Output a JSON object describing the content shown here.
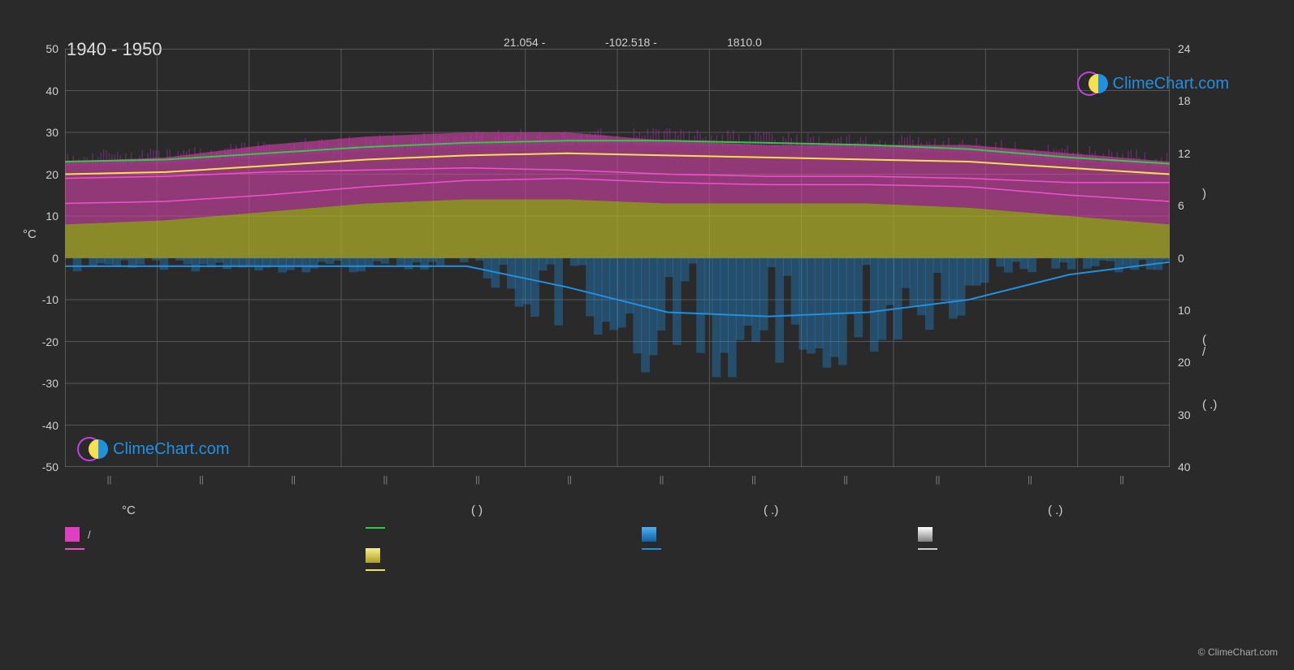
{
  "title": "1940 - 1950",
  "header": {
    "lat": "21.054 -",
    "lon": "-102.518 -",
    "elev": "1810.0"
  },
  "chart": {
    "type": "climate-chart",
    "background_color": "#2a2a2a",
    "grid_color": "#555555",
    "left_axis": {
      "title": "°C",
      "min": -50,
      "max": 50,
      "step": 10,
      "ticks": [
        50,
        40,
        30,
        20,
        10,
        0,
        -10,
        -20,
        -30,
        -40,
        -50
      ]
    },
    "right_axis": {
      "top": {
        "ticks": [
          24,
          18,
          12,
          6,
          0
        ],
        "symbol": ")"
      },
      "bottom": {
        "ticks": [
          10,
          20,
          30,
          40
        ],
        "symbols": [
          "(",
          "/",
          "(   .)"
        ]
      }
    },
    "month_marks": [
      "||",
      "||",
      "||",
      "||",
      "||",
      "||",
      "||",
      "||",
      "||",
      "||",
      "||",
      "||"
    ],
    "series": {
      "green_line": {
        "color": "#2ecc40",
        "width": 2,
        "values": [
          23,
          23.5,
          25,
          26.5,
          27.5,
          28,
          28,
          27.5,
          27,
          26,
          24,
          22.5
        ]
      },
      "yellow_line": {
        "color": "#f5e050",
        "width": 2,
        "values": [
          20,
          20.5,
          22,
          23.5,
          24.5,
          25,
          24.5,
          24,
          23.5,
          23,
          21.5,
          20
        ]
      },
      "magenta_upper": {
        "color": "#f050d0",
        "width": 1.5,
        "values": [
          19,
          19.5,
          20.5,
          21,
          21.5,
          21,
          20,
          19.5,
          19.5,
          19,
          18,
          18
        ]
      },
      "magenta_lower": {
        "color": "#f050d0",
        "width": 1.5,
        "values": [
          13,
          13.5,
          15,
          17,
          18.5,
          19,
          18,
          17.5,
          17.5,
          17,
          15,
          13.5
        ]
      },
      "blue_line": {
        "color": "#2090e0",
        "width": 2,
        "values": [
          -2,
          -2,
          -2,
          -2,
          -2,
          -7,
          -13,
          -14,
          -13,
          -10,
          -4,
          -1
        ]
      },
      "pink_fill": {
        "color": "rgba(230, 70, 180, 0.55)",
        "top_values": [
          23,
          24,
          27,
          29,
          30,
          30,
          28,
          27,
          27,
          27,
          25,
          23
        ],
        "bottom_values": [
          8,
          9,
          11,
          13,
          14,
          14,
          13,
          13,
          13,
          12,
          10,
          8
        ]
      },
      "olive_fill": {
        "color": "rgba(180, 180, 40, 0.7)",
        "top_values": [
          8,
          9,
          11,
          13,
          14,
          14,
          13,
          13,
          13,
          12,
          10,
          8
        ],
        "bottom_values": [
          0,
          0,
          0,
          0,
          0,
          0,
          0,
          0,
          0,
          0,
          0,
          0
        ]
      },
      "blue_fill": {
        "color": "rgba(32, 144, 224, 0.35)",
        "segments": 140
      }
    }
  },
  "legend": {
    "headers": [
      "°C",
      "(            )",
      "(   .)",
      "(   .)"
    ],
    "col1": [
      {
        "type": "swatch",
        "color": "#e040c0",
        "label": "/"
      },
      {
        "type": "line",
        "color": "#f050d0",
        "label": ""
      }
    ],
    "col2": [
      {
        "type": "line",
        "color": "#2ecc40",
        "label": ""
      },
      {
        "type": "swatch",
        "gradient": [
          "#f5f090",
          "#b0a020"
        ],
        "label": ""
      },
      {
        "type": "line",
        "color": "#f5e050",
        "label": ""
      }
    ],
    "col3": [
      {
        "type": "swatch",
        "gradient": [
          "#50b0f0",
          "#1060a0"
        ],
        "label": ""
      },
      {
        "type": "line",
        "color": "#2090e0",
        "label": ""
      }
    ],
    "col4": [
      {
        "type": "swatch",
        "gradient": [
          "#ffffff",
          "#808080"
        ],
        "label": ""
      },
      {
        "type": "line",
        "color": "#cccccc",
        "label": ""
      }
    ]
  },
  "logo": {
    "text": "ClimeChart.com",
    "circle_color": "#c040e0",
    "sun_color_start": "#f5e050",
    "sun_color_end": "#2090e0",
    "text_color": "#2090e0"
  },
  "copyright": "© ClimeChart.com"
}
